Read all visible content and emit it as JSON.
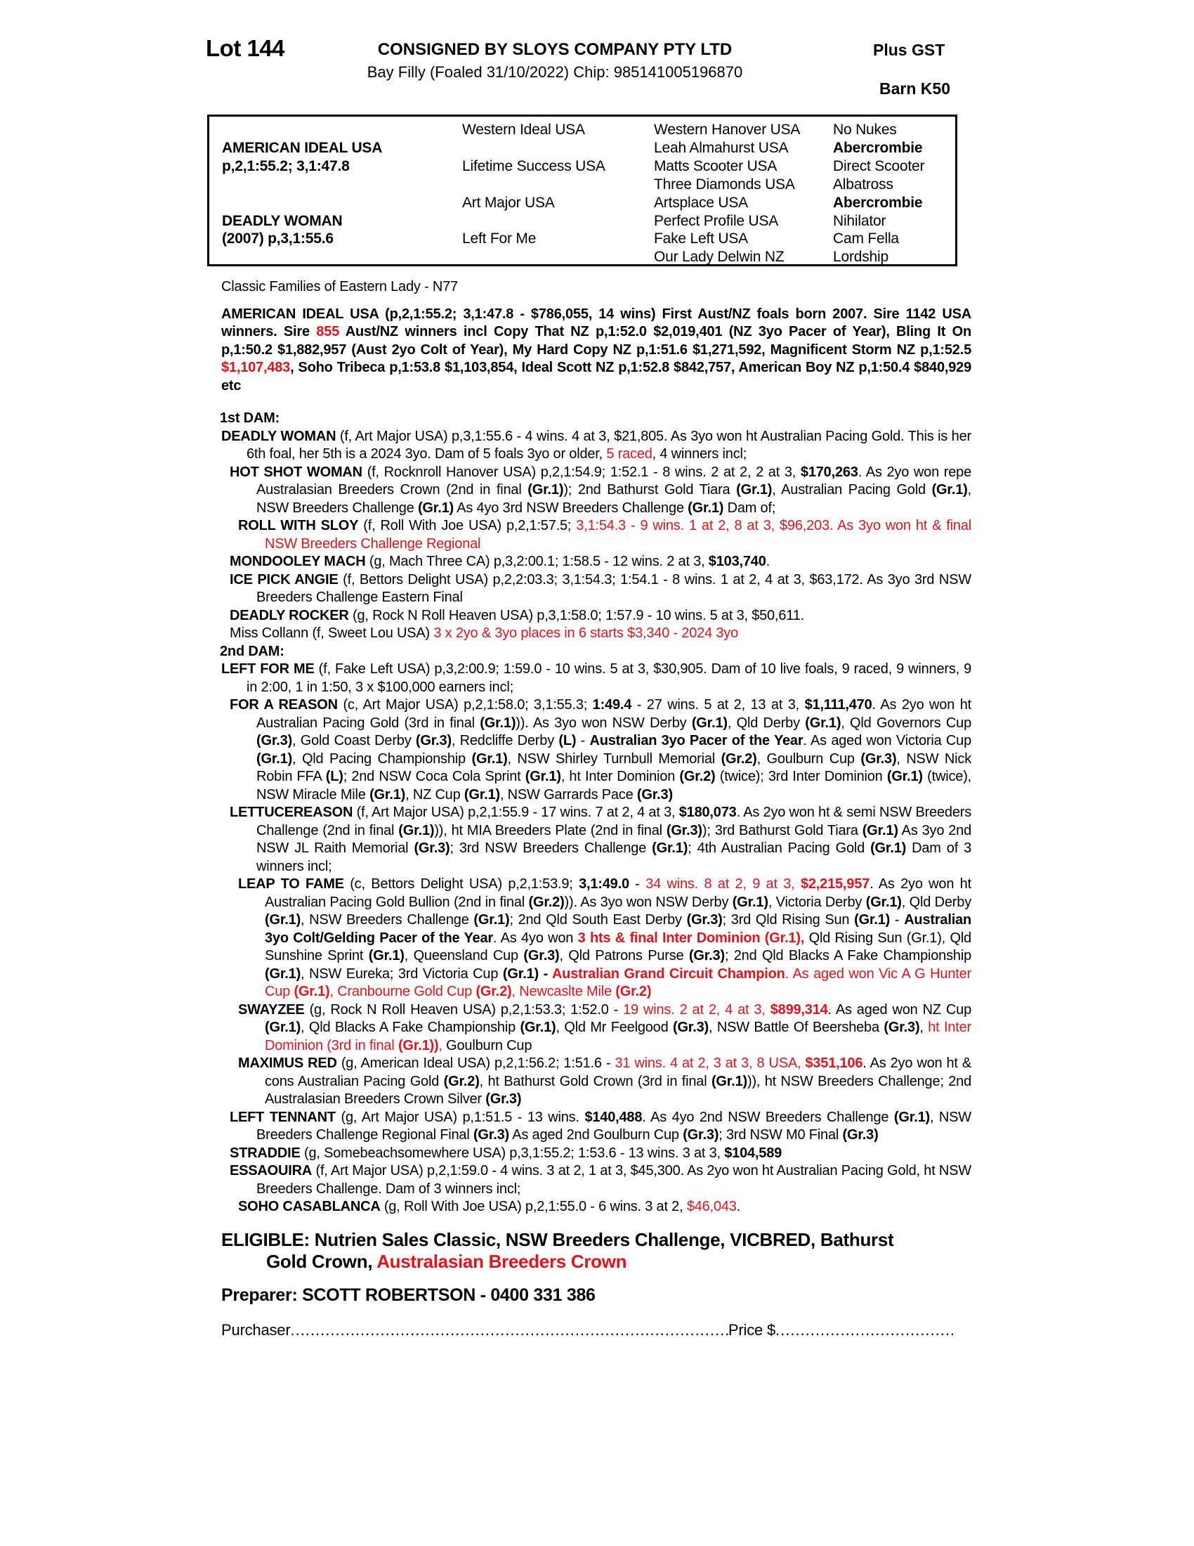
{
  "header": {
    "lot": "Lot 144",
    "consignor": "CONSIGNED BY SLOYS COMPANY PTY LTD",
    "plus_gst": "Plus GST",
    "description": "Bay Filly (Foaled 31/10/2022) Chip: 985141005196870",
    "barn": "Barn K50"
  },
  "colors": {
    "red": "#e8111b",
    "text": "#000000"
  },
  "pedigree_table": {
    "col1": [
      {
        "row": 2,
        "lines": [
          "AMERICAN IDEAL USA",
          "p,2,1:55.2; 3,1:47.8"
        ]
      },
      {
        "row": 6,
        "lines": [
          "DEADLY WOMAN",
          "(2007) p,3,1:55.6"
        ]
      }
    ],
    "col2": [
      {
        "row": 1,
        "t": "Western Ideal USA"
      },
      {
        "row": 3,
        "t": "Lifetime Success USA"
      },
      {
        "row": 5,
        "t": "Art Major USA"
      },
      {
        "row": 7,
        "t": "Left For Me"
      }
    ],
    "col3": [
      "Western Hanover USA",
      "Leah Almahurst USA",
      "Matts Scooter USA",
      "Three Diamonds USA",
      "Artsplace USA",
      "Perfect Profile USA",
      "Fake Left USA",
      "Our Lady Delwin NZ"
    ],
    "col4": [
      {
        "t": "No Nukes"
      },
      {
        "t": "Abercrombie",
        "b": true
      },
      {
        "t": "Direct Scooter"
      },
      {
        "t": "Albatross"
      },
      {
        "t": "Abercrombie",
        "b": true
      },
      {
        "t": "Nihilator"
      },
      {
        "t": "Cam Fella"
      },
      {
        "t": "Lordship"
      }
    ]
  },
  "family_line": "Classic Families of Eastern Lady - N77",
  "sire_para": {
    "segments": [
      {
        "t": "AMERICAN IDEAL USA (p,2,1:55.2; 3,1:47.8 - $786,055, 14 wins) First Aust/NZ foals born 2007. Sire 1142 USA winners. Sire "
      },
      {
        "t": "855",
        "r": true
      },
      {
        "t": " Aust/NZ winners incl Copy That NZ p,1:52.0 $2,019,401 (NZ 3yo Pacer of Year), Bling It On p,1:50.2 $1,882,957 (Aust 2yo Colt of Year), My Hard Copy NZ p,1:51.6 $1,271,592, Magnificent Storm NZ p,1:52.5 "
      },
      {
        "t": "$1,107,483",
        "r": true
      },
      {
        "t": ", Soho Tribeca p,1:53.8 $1,103,854, Ideal Scott NZ p,1:52.8 $842,757, American Boy NZ p,1:50.4 $840,929 etc"
      }
    ]
  },
  "pedigree_paras": [
    {
      "level": 0,
      "name": "first-dam-heading",
      "segments": [
        {
          "t": "1st DAM:",
          "b": true
        }
      ]
    },
    {
      "level": 1,
      "name": "deadly-woman",
      "segments": [
        {
          "t": "DEADLY WOMAN",
          "b": true
        },
        {
          "t": " (f, Art Major USA) p,3,1:55.6 - 4 wins. 4 at 3, $21,805. As 3yo won ht Australian Pacing Gold. This is her 6th foal, her 5th is a 2024 3yo. Dam of 5 foals 3yo or older, "
        },
        {
          "t": "5 raced",
          "r": true
        },
        {
          "t": ", 4 winners incl;"
        }
      ]
    },
    {
      "level": 2,
      "name": "hot-shot-woman",
      "segments": [
        {
          "t": "HOT SHOT WOMAN",
          "b": true
        },
        {
          "t": " (f, Rocknroll Hanover USA) p,2,1:54.9; 1:52.1 - 8 wins. 2 at 2, 2 at 3, "
        },
        {
          "t": "$170,263",
          "b": true
        },
        {
          "t": ". As 2yo won repe Australasian Breeders Crown (2nd in final "
        },
        {
          "t": "(Gr.1)",
          "b": true
        },
        {
          "t": "); 2nd Bathurst Gold Tiara "
        },
        {
          "t": "(Gr.1)",
          "b": true
        },
        {
          "t": ", Australian Pacing Gold "
        },
        {
          "t": "(Gr.1)",
          "b": true
        },
        {
          "t": ", NSW Breeders Challenge "
        },
        {
          "t": "(Gr.1)",
          "b": true
        },
        {
          "t": " As 4yo 3rd NSW Breeders Challenge "
        },
        {
          "t": "(Gr.1)",
          "b": true
        },
        {
          "t": " Dam of;"
        }
      ]
    },
    {
      "level": 3,
      "name": "roll-with-sloy",
      "segments": [
        {
          "t": "ROLL WITH SLOY",
          "b": true
        },
        {
          "t": " (f, Roll With Joe USA) p,2,1:57.5; "
        },
        {
          "t": "3,1:54.3 - 9 wins. 1 at 2, 8 at 3, $96,203. As 3yo won ht & final NSW Breeders Challenge Regional",
          "r": true
        }
      ]
    },
    {
      "level": 2,
      "name": "mondooley-mach",
      "segments": [
        {
          "t": "MONDOOLEY MACH",
          "b": true
        },
        {
          "t": " (g, Mach Three CA) p,3,2:00.1; 1:58.5 - 12 wins. 2 at 3, "
        },
        {
          "t": "$103,740",
          "b": true
        },
        {
          "t": "."
        }
      ]
    },
    {
      "level": 2,
      "name": "ice-pick-angie",
      "segments": [
        {
          "t": "ICE PICK ANGIE",
          "b": true
        },
        {
          "t": " (f, Bettors Delight USA) p,2,2:03.3; 3,1:54.3; 1:54.1 - 8 wins. 1 at 2, 4 at 3, $63,172. As 3yo 3rd NSW Breeders Challenge Eastern Final"
        }
      ]
    },
    {
      "level": 2,
      "name": "deadly-rocker",
      "segments": [
        {
          "t": "DEADLY ROCKER",
          "b": true
        },
        {
          "t": " (g, Rock N Roll Heaven USA) p,3,1:58.0; 1:57.9 - 10 wins. 5 at 3, $50,611."
        }
      ]
    },
    {
      "level": 2,
      "name": "miss-collann",
      "segments": [
        {
          "t": "Miss Collann (f, Sweet Lou USA) "
        },
        {
          "t": "3 x 2yo & 3yo places in 6 starts $3,340 - 2024 3yo",
          "r": true
        }
      ]
    },
    {
      "level": 0,
      "name": "second-dam-heading",
      "segments": [
        {
          "t": "2nd DAM:",
          "b": true
        }
      ]
    },
    {
      "level": 1,
      "name": "left-for-me",
      "segments": [
        {
          "t": "LEFT FOR ME",
          "b": true
        },
        {
          "t": " (f, Fake Left USA) p,3,2:00.9; 1:59.0 - 10 wins. 5 at 3, $30,905. Dam of 10 live foals, 9 raced, 9 winners, 9 in 2:00, 1 in 1:50, 3 x $100,000 earners incl;"
        }
      ]
    },
    {
      "level": 2,
      "name": "for-a-reason",
      "segments": [
        {
          "t": "FOR A REASON",
          "b": true
        },
        {
          "t": " (c, Art Major USA) p,2,1:58.0; 3,1:55.3; "
        },
        {
          "t": "1:49.4",
          "b": true
        },
        {
          "t": " - 27 wins. 5 at 2, 13 at 3, "
        },
        {
          "t": "$1,111,470",
          "b": true
        },
        {
          "t": ". As 2yo won ht Australian Pacing Gold (3rd in final "
        },
        {
          "t": "(Gr.1)",
          "b": true
        },
        {
          "t": ")). As 3yo won NSW Derby "
        },
        {
          "t": "(Gr.1)",
          "b": true
        },
        {
          "t": ", Qld Derby "
        },
        {
          "t": "(Gr.1)",
          "b": true
        },
        {
          "t": ", Qld Governors Cup "
        },
        {
          "t": "(Gr.3)",
          "b": true
        },
        {
          "t": ", Gold Coast Derby "
        },
        {
          "t": "(Gr.3)",
          "b": true
        },
        {
          "t": ", Redcliffe Derby "
        },
        {
          "t": "(L)",
          "b": true
        },
        {
          "t": " - "
        },
        {
          "t": "Australian 3yo Pacer of the Year",
          "b": true
        },
        {
          "t": ". As aged won Victoria Cup "
        },
        {
          "t": "(Gr.1)",
          "b": true
        },
        {
          "t": ", Qld Pacing Championship "
        },
        {
          "t": "(Gr.1)",
          "b": true
        },
        {
          "t": ", NSW Shirley Turnbull Memorial "
        },
        {
          "t": "(Gr.2)",
          "b": true
        },
        {
          "t": ", Goulburn Cup "
        },
        {
          "t": "(Gr.3)",
          "b": true
        },
        {
          "t": ", NSW Nick Robin FFA "
        },
        {
          "t": "(L)",
          "b": true
        },
        {
          "t": "; 2nd NSW Coca Cola Sprint "
        },
        {
          "t": "(Gr.1)",
          "b": true
        },
        {
          "t": ", ht Inter Dominion "
        },
        {
          "t": "(Gr.2)",
          "b": true
        },
        {
          "t": " (twice); 3rd Inter Dominion "
        },
        {
          "t": "(Gr.1)",
          "b": true
        },
        {
          "t": " (twice), NSW Miracle Mile "
        },
        {
          "t": "(Gr.1)",
          "b": true
        },
        {
          "t": ", NZ Cup "
        },
        {
          "t": "(Gr.1)",
          "b": true
        },
        {
          "t": ", NSW Garrards Pace "
        },
        {
          "t": "(Gr.3)",
          "b": true
        }
      ]
    },
    {
      "level": 2,
      "name": "lettucereason",
      "segments": [
        {
          "t": "LETTUCEREASON",
          "b": true
        },
        {
          "t": " (f, Art Major USA) p,2,1:55.9 - 17 wins. 7 at 2, 4 at 3, "
        },
        {
          "t": "$180,073",
          "b": true
        },
        {
          "t": ". As 2yo won ht & semi NSW Breeders Challenge (2nd in final "
        },
        {
          "t": "(Gr.1)",
          "b": true
        },
        {
          "t": ")), ht MIA Breeders Plate (2nd in final "
        },
        {
          "t": "(Gr.3)",
          "b": true
        },
        {
          "t": "); 3rd Bathurst Gold Tiara "
        },
        {
          "t": "(Gr.1)",
          "b": true
        },
        {
          "t": " As 3yo 2nd NSW JL Raith Memorial "
        },
        {
          "t": "(Gr.3)",
          "b": true
        },
        {
          "t": "; 3rd NSW Breeders Challenge "
        },
        {
          "t": "(Gr.1)",
          "b": true
        },
        {
          "t": "; 4th Australian Pacing Gold "
        },
        {
          "t": "(Gr.1)",
          "b": true
        },
        {
          "t": " Dam of 3 winners incl;"
        }
      ]
    },
    {
      "level": 3,
      "name": "leap-to-fame",
      "segments": [
        {
          "t": "LEAP TO FAME",
          "b": true
        },
        {
          "t": " (c, Bettors Delight USA) p,2,1:53.9; "
        },
        {
          "t": "3,1:49.0",
          "b": true
        },
        {
          "t": " - "
        },
        {
          "t": "34 wins. 8 at 2, 9 at 3, ",
          "r": true
        },
        {
          "t": "$2,215,957",
          "r": true,
          "b": true
        },
        {
          "t": ". As 2yo won ht Australian Pacing Gold Bullion (2nd in final "
        },
        {
          "t": "(Gr.2)",
          "b": true
        },
        {
          "t": ")). As 3yo won NSW Derby "
        },
        {
          "t": "(Gr.1)",
          "b": true
        },
        {
          "t": ", Victoria Derby "
        },
        {
          "t": "(Gr.1)",
          "b": true
        },
        {
          "t": ", Qld Derby "
        },
        {
          "t": "(Gr.1)",
          "b": true
        },
        {
          "t": ", NSW Breeders Challenge "
        },
        {
          "t": "(Gr.1)",
          "b": true
        },
        {
          "t": "; 2nd Qld South East Derby "
        },
        {
          "t": "(Gr.3)",
          "b": true
        },
        {
          "t": "; 3rd Qld Rising Sun "
        },
        {
          "t": "(Gr.1)",
          "b": true
        },
        {
          "t": " - "
        },
        {
          "t": "Australian 3yo Colt/Gelding Pacer of the Year",
          "b": true
        },
        {
          "t": ". As 4yo won "
        },
        {
          "t": "3 hts & final Inter Dominion (Gr.1),",
          "r": true,
          "b": true
        },
        {
          "t": " Qld Rising Sun (Gr.1), Qld Sunshine Sprint "
        },
        {
          "t": "(Gr.1)",
          "b": true
        },
        {
          "t": ", Queensland Cup "
        },
        {
          "t": "(Gr.3)",
          "b": true
        },
        {
          "t": ", Qld Patrons Purse "
        },
        {
          "t": "(Gr.3)",
          "b": true
        },
        {
          "t": "; 2nd Qld Blacks A Fake Championship "
        },
        {
          "t": "(Gr.1)",
          "b": true
        },
        {
          "t": ", NSW Eureka; 3rd Victoria Cup "
        },
        {
          "t": "(Gr.1)",
          "b": true
        },
        {
          "t": " - ",
          "b": true
        },
        {
          "t": "Australian Grand Circuit Champion",
          "r": true,
          "b": true
        },
        {
          "t": ". As aged won Vic A G Hunter Cup ",
          "r": true
        },
        {
          "t": "(Gr.1)",
          "r": true,
          "b": true
        },
        {
          "t": ", Cranbourne Gold Cup ",
          "r": true
        },
        {
          "t": "(Gr.2)",
          "r": true,
          "b": true
        },
        {
          "t": ", Newcaslte Mile ",
          "r": true
        },
        {
          "t": "(Gr.2)",
          "r": true,
          "b": true
        }
      ]
    },
    {
      "level": 3,
      "name": "swayzee",
      "segments": [
        {
          "t": "SWAYZEE",
          "b": true
        },
        {
          "t": " (g, Rock N Roll Heaven USA) p,2,1:53.3; 1:52.0 - "
        },
        {
          "t": "19 wins. 2 at 2, 4 at 3, ",
          "r": true
        },
        {
          "t": "$899,314",
          "r": true,
          "b": true
        },
        {
          "t": ". As aged won NZ Cup "
        },
        {
          "t": "(Gr.1)",
          "b": true
        },
        {
          "t": ", Qld Blacks A Fake Championship "
        },
        {
          "t": "(Gr.1)",
          "b": true
        },
        {
          "t": ", Qld Mr Feelgood "
        },
        {
          "t": "(Gr.3)",
          "b": true
        },
        {
          "t": ", NSW Battle Of Beersheba "
        },
        {
          "t": "(Gr.3)",
          "b": true
        },
        {
          "t": ", "
        },
        {
          "t": "ht Inter Dominion (3rd in final ",
          "r": true
        },
        {
          "t": "(Gr.1))",
          "r": true,
          "b": true
        },
        {
          "t": ",",
          "r": true
        },
        {
          "t": " Goulburn Cup"
        }
      ]
    },
    {
      "level": 3,
      "name": "maximus-red",
      "segments": [
        {
          "t": "MAXIMUS RED",
          "b": true
        },
        {
          "t": " (g, American Ideal USA) p,2,1:56.2; 1:51.6 - "
        },
        {
          "t": "31 wins. 4 at 2, 3 at 3, 8 USA, ",
          "r": true
        },
        {
          "t": "$351,106",
          "r": true,
          "b": true
        },
        {
          "t": ". As 2yo won ht & cons Australian Pacing Gold "
        },
        {
          "t": "(Gr.2)",
          "b": true
        },
        {
          "t": ", ht Bathurst Gold Crown (3rd in final "
        },
        {
          "t": "(Gr.1)",
          "b": true
        },
        {
          "t": ")), ht NSW Breeders Challenge; 2nd Australasian Breeders Crown Silver "
        },
        {
          "t": "(Gr.3)",
          "b": true
        }
      ]
    },
    {
      "level": 2,
      "name": "left-tennant",
      "segments": [
        {
          "t": "LEFT TENNANT",
          "b": true
        },
        {
          "t": " (g, Art Major USA) p,1:51.5 - 13 wins. "
        },
        {
          "t": "$140,488",
          "b": true
        },
        {
          "t": ". As 4yo 2nd NSW Breeders Challenge "
        },
        {
          "t": "(Gr.1)",
          "b": true
        },
        {
          "t": ", NSW Breeders Challenge Regional Final "
        },
        {
          "t": "(Gr.3)",
          "b": true
        },
        {
          "t": " As aged 2nd Goulburn Cup "
        },
        {
          "t": "(Gr.3)",
          "b": true
        },
        {
          "t": "; 3rd NSW M0 Final "
        },
        {
          "t": "(Gr.3)",
          "b": true
        }
      ]
    },
    {
      "level": 2,
      "name": "straddie",
      "segments": [
        {
          "t": "STRADDIE",
          "b": true
        },
        {
          "t": " (g, Somebeachsomewhere USA) p,3,1:55.2; 1:53.6 - 13 wins. 3 at 3, "
        },
        {
          "t": "$104,589",
          "b": true
        }
      ]
    },
    {
      "level": 2,
      "name": "essaouira",
      "segments": [
        {
          "t": "ESSAOUIRA",
          "b": true
        },
        {
          "t": " (f, Art Major USA) p,2,1:59.0 - 4 wins. 3 at 2, 1 at 3, $45,300. As 2yo won ht Australian Pacing Gold, ht NSW Breeders Challenge. Dam of 3 winners incl;"
        }
      ]
    },
    {
      "level": 3,
      "name": "soho-casablanca",
      "segments": [
        {
          "t": "SOHO CASABLANCA",
          "b": true
        },
        {
          "t": " (g, Roll With Joe USA) p,2,1:55.0 - 6 wins. 3 at 2, "
        },
        {
          "t": "$46,043",
          "r": true
        },
        {
          "t": "."
        }
      ]
    }
  ],
  "eligible": {
    "segments": [
      {
        "t": "ELIGIBLE: Nutrien Sales Classic, NSW Breeders Challenge, VICBRED, Bathurst\nGold Crown, ",
        "b": true
      },
      {
        "t": "Australasian Breeders Crown",
        "b": true,
        "r": true
      }
    ]
  },
  "preparer": "Preparer: SCOTT ROBERTSON - 0400 331 386",
  "purchase": {
    "purchaser_label": "Purchaser",
    "purchaser_dots": "....................................................................................................................................................",
    "price_label": "Price $",
    "price_dots": "........................................................................"
  }
}
